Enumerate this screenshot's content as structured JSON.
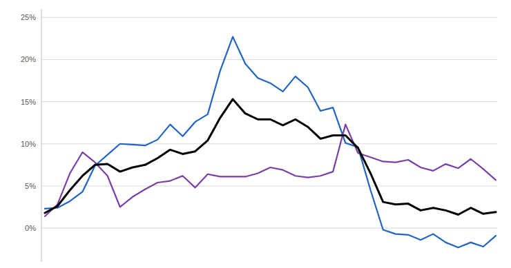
{
  "chart_data": {
    "type": "line",
    "categories": [
      null,
      null,
      null,
      null,
      null,
      null,
      null,
      null,
      null,
      null,
      null,
      null,
      null,
      null,
      null,
      null,
      null,
      null,
      null,
      null,
      null,
      null,
      null,
      null,
      null,
      null,
      null,
      null,
      null,
      null,
      null,
      null,
      null,
      null,
      null,
      null,
      null
    ],
    "series": [
      {
        "color": "#1f63c6",
        "values": [
          2.3,
          2.4,
          3.2,
          4.3,
          7.4,
          8.7,
          10.0,
          9.9,
          9.8,
          10.5,
          12.3,
          10.9,
          12.6,
          13.5,
          18.7,
          22.7,
          19.5,
          17.8,
          17.2,
          16.2,
          18.0,
          16.7,
          13.9,
          14.3,
          10.1,
          9.6,
          4.5,
          -0.2,
          -0.7,
          -0.8,
          -1.4,
          -0.7,
          -1.7,
          -2.3,
          -1.7,
          -2.2,
          -0.9
        ]
      },
      {
        "color": "#7a3fa6",
        "values": [
          1.4,
          2.8,
          6.5,
          9.0,
          7.8,
          6.2,
          2.5,
          3.7,
          4.6,
          5.4,
          5.6,
          6.2,
          4.8,
          6.4,
          6.1,
          6.1,
          6.1,
          6.5,
          7.2,
          6.9,
          6.2,
          6.0,
          6.2,
          6.7,
          12.3,
          8.9,
          8.4,
          7.9,
          7.8,
          8.1,
          7.2,
          6.8,
          7.6,
          7.1,
          8.2,
          7.0,
          5.7
        ]
      },
      {
        "color": "#000000",
        "values": [
          1.8,
          2.6,
          4.5,
          6.2,
          7.5,
          7.6,
          6.7,
          7.2,
          7.5,
          8.3,
          9.3,
          8.8,
          9.1,
          10.4,
          13.1,
          15.3,
          13.6,
          12.9,
          12.9,
          12.2,
          12.9,
          12.0,
          10.6,
          11.0,
          11.0,
          9.5,
          6.5,
          3.1,
          2.8,
          2.9,
          2.1,
          2.4,
          2.1,
          1.6,
          2.4,
          1.7,
          1.9
        ]
      }
    ],
    "ylim": [
      -4,
      26
    ],
    "yticks": [
      {
        "value": 0,
        "label": "0%"
      },
      {
        "value": 5,
        "label": "5%"
      },
      {
        "value": 10,
        "label": "10%"
      },
      {
        "value": 15,
        "label": "15%"
      },
      {
        "value": 20,
        "label": "20%"
      },
      {
        "value": 25,
        "label": "25%"
      }
    ],
    "grid": true,
    "tick_labels": "y"
  }
}
